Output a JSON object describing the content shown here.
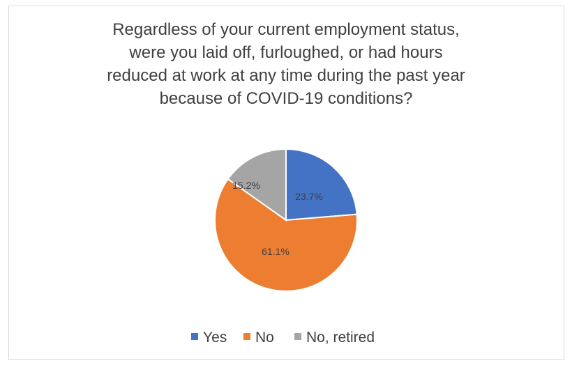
{
  "chart_data": {
    "type": "pie",
    "title_lines": [
      "Regardless of your current employment status,",
      "were you laid off, furloughed, or had hours",
      "reduced at work at any time during the past year",
      "because of COVID-19 conditions?"
    ],
    "categories": [
      "Yes",
      "No",
      "No, retired"
    ],
    "values": [
      23.7,
      61.1,
      15.2
    ],
    "data_labels": [
      "23.7%",
      "61.1%",
      "15.2%"
    ],
    "colors": [
      "#4472C4",
      "#ED7D31",
      "#A5A5A5"
    ],
    "legend_position": "bottom"
  }
}
